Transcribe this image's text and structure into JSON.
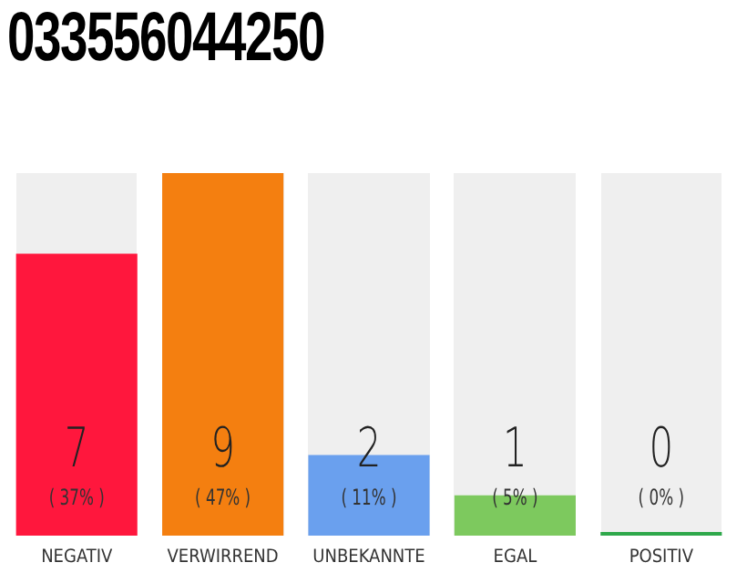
{
  "chart_data": {
    "type": "bar",
    "title": "033556044250",
    "categories": [
      "NEGATIV",
      "VERWIRREND",
      "UNBEKANNTE",
      "EGAL",
      "POSITIV"
    ],
    "values": [
      7,
      9,
      2,
      1,
      0
    ],
    "colors": [
      "#ff173d",
      "#f47f10",
      "#6aa0ee",
      "#7dc95e",
      "#2ea84a"
    ],
    "ylim": [
      0,
      9
    ],
    "tick_labels": "x",
    "grid": false,
    "legend": false,
    "data_labels": true,
    "annotations": [
      "( 37% )",
      "( 47% )",
      "( 11% )",
      "( 5% )",
      "( 0% )"
    ]
  }
}
